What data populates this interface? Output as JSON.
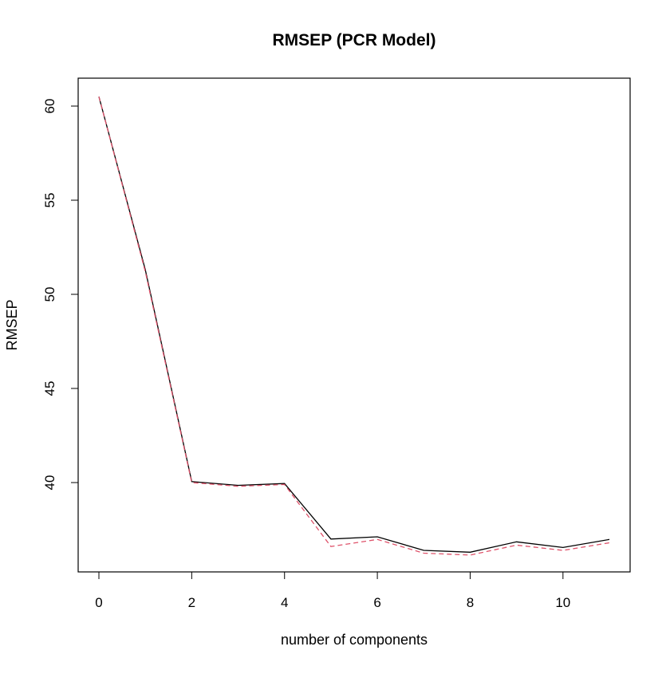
{
  "chart_data": {
    "type": "line",
    "title": "RMSEP (PCR Model)",
    "xlabel": "number of components",
    "ylabel": "RMSEP",
    "xlim": [
      0,
      11
    ],
    "ylim": [
      35.2,
      61.8
    ],
    "x_ticks": [
      0,
      2,
      4,
      6,
      8,
      10
    ],
    "y_ticks": [
      40,
      45,
      50,
      55,
      60
    ],
    "x": [
      0,
      1,
      2,
      3,
      4,
      5,
      6,
      7,
      8,
      9,
      10,
      11
    ],
    "series": [
      {
        "style": "solid",
        "color": "#000000",
        "values": [
          60.5,
          51.3,
          40.05,
          39.85,
          39.95,
          37.0,
          37.12,
          36.4,
          36.3,
          36.85,
          36.55,
          36.98
        ]
      },
      {
        "style": "dashed",
        "color": "#DF536B",
        "values": [
          60.5,
          51.2,
          40.0,
          39.8,
          39.9,
          36.6,
          36.98,
          36.25,
          36.15,
          36.68,
          36.4,
          36.8
        ]
      }
    ],
    "grid": false,
    "legend": "none"
  }
}
